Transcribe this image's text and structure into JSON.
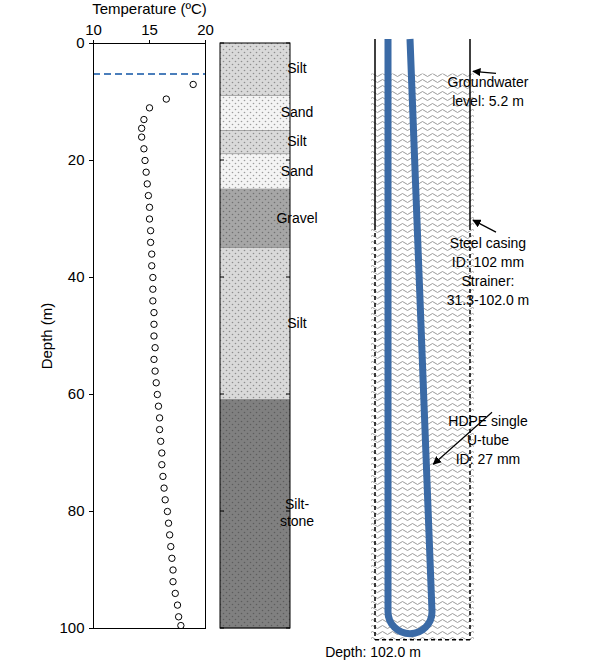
{
  "chart_data": {
    "type": "scatter",
    "xlabel": "Temperature (ºC)",
    "ylabel": "Depth (m)",
    "x": [
      18.9,
      16.5,
      15.0,
      14.5,
      14.3,
      14.3,
      14.5,
      14.6,
      14.7,
      14.8,
      14.9,
      15.0,
      15.0,
      15.1,
      15.1,
      15.2,
      15.2,
      15.3,
      15.3,
      15.3,
      15.4,
      15.4,
      15.4,
      15.5,
      15.4,
      15.5,
      15.6,
      15.7,
      15.8,
      15.9,
      15.9,
      16.0,
      16.1,
      16.1,
      16.2,
      16.3,
      16.4,
      16.6,
      16.7,
      16.8,
      16.9,
      17.0,
      17.1,
      17.1,
      17.3,
      17.5,
      17.6,
      17.8
    ],
    "y": [
      7,
      9.5,
      11,
      13,
      14.5,
      16,
      18,
      20,
      22,
      24,
      26,
      28,
      30,
      32,
      34,
      36,
      38,
      40,
      42,
      44,
      46,
      48,
      50,
      52,
      54,
      56,
      58,
      60,
      62,
      64,
      66,
      68,
      70,
      72,
      74,
      76,
      78,
      80,
      82,
      84,
      86,
      88,
      90,
      92,
      94,
      96,
      98,
      99.5
    ],
    "xlim": [
      10,
      20
    ],
    "xticks": [
      10,
      15,
      20
    ],
    "ylim": [
      0,
      100
    ],
    "yticks": [
      0,
      20,
      40,
      60,
      80,
      100
    ],
    "color": "#000000",
    "marker": "open circle",
    "groundwater_level": 5.2,
    "groundwater_color": "#4a7ebb",
    "groundwater_line_style": "dashed"
  },
  "diagram": {
    "layers": [
      {
        "label": "Silt",
        "top": 0,
        "bottom": 9,
        "color": "#d9d9d9"
      },
      {
        "label": "Sand",
        "top": 9,
        "bottom": 15,
        "color": "#f4f4f4"
      },
      {
        "label": "Silt",
        "top": 15,
        "bottom": 19,
        "color": "#d9d9d9"
      },
      {
        "label": "Sand",
        "top": 19,
        "bottom": 25,
        "color": "#f4f4f4"
      },
      {
        "label": "Gravel",
        "top": 25,
        "bottom": 35,
        "color": "#a6a6a6"
      },
      {
        "label": "Silt",
        "top": 35,
        "bottom": 61,
        "color": "#d9d9d9"
      },
      {
        "label": "Silt-\nstone",
        "top": 61,
        "bottom": 100,
        "color": "#808080"
      }
    ],
    "borehole": {
      "casing_bottom": 102.0,
      "strainer": [
        31.3,
        102.0
      ],
      "tube_color": "#3a6aa6"
    },
    "annotations": {
      "groundwater": [
        "Groundwater",
        "level: 5.2 m"
      ],
      "casing": [
        "Steel casing",
        "ID: 102 mm",
        "Strainer:",
        "31.3-102.0 m"
      ],
      "tube": [
        "HDPE single",
        "U-tube",
        "ID: 27 mm"
      ],
      "depth": "Depth: 102.0 m"
    }
  }
}
